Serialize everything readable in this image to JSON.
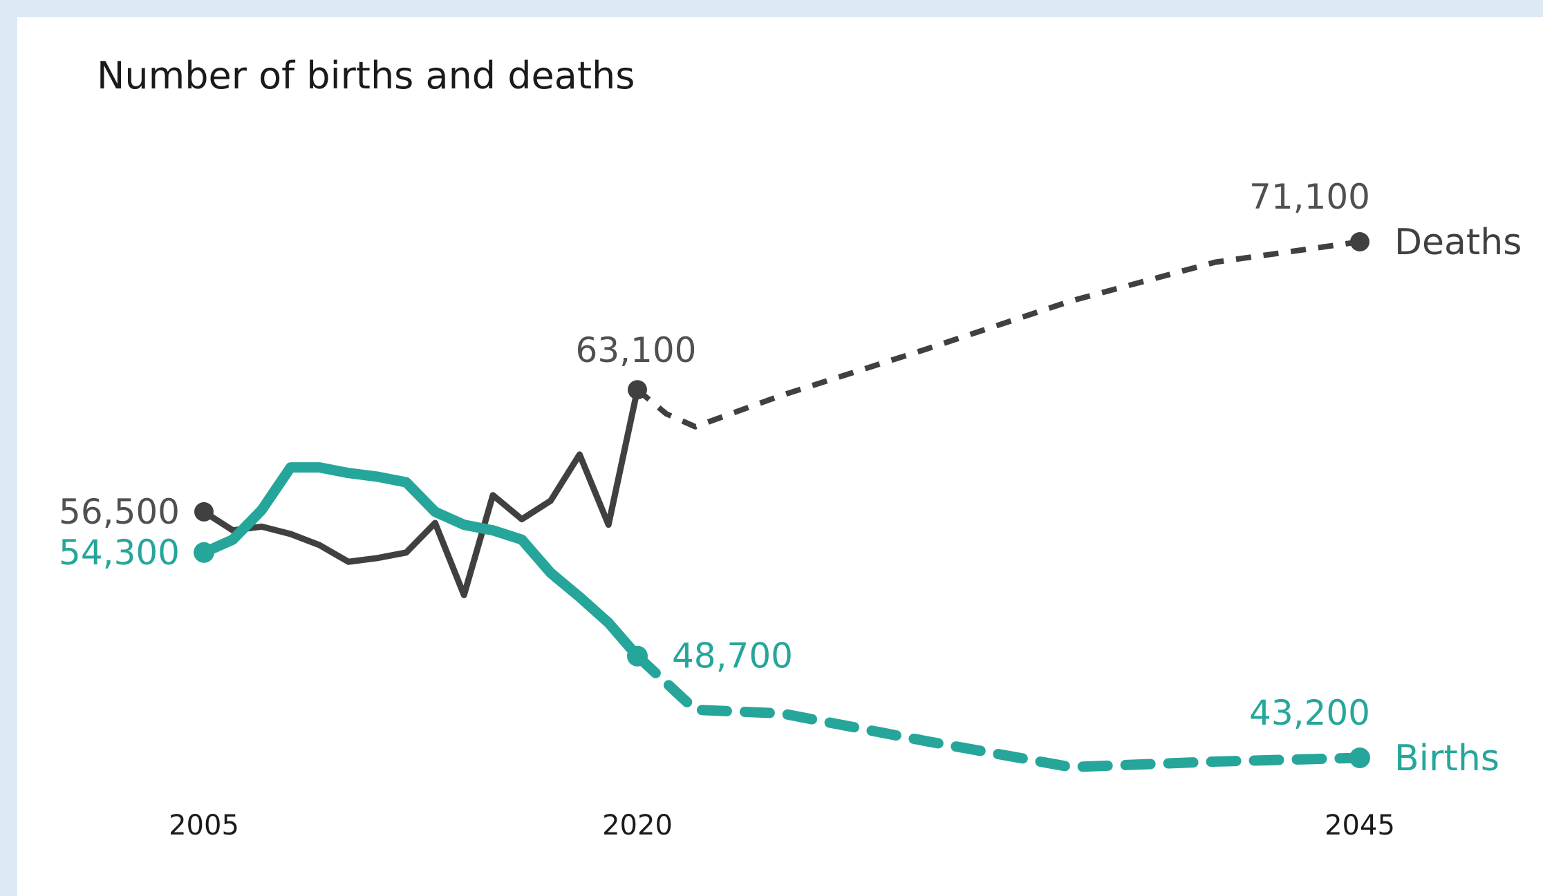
{
  "chart_data": {
    "type": "line",
    "title": "Number of births and deaths",
    "x_ticks": [
      "2005",
      "2020",
      "2045"
    ],
    "ylim": [
      40000,
      75000
    ],
    "grid": false,
    "legend": "inline-right",
    "series": [
      {
        "name": "Deaths",
        "color": "#404040",
        "actual": [
          [
            2005,
            56500
          ],
          [
            2006,
            55500
          ],
          [
            2007,
            55700
          ],
          [
            2008,
            55300
          ],
          [
            2009,
            54700
          ],
          [
            2010,
            53800
          ],
          [
            2011,
            54000
          ],
          [
            2012,
            54300
          ],
          [
            2013,
            55900
          ],
          [
            2014,
            52000
          ],
          [
            2015,
            57400
          ],
          [
            2016,
            56100
          ],
          [
            2017,
            57100
          ],
          [
            2018,
            59600
          ],
          [
            2019,
            55800
          ],
          [
            2020,
            63100
          ]
        ],
        "projected": [
          [
            2020,
            63100
          ],
          [
            2021,
            61800
          ],
          [
            2022,
            61100
          ],
          [
            2025,
            62800
          ],
          [
            2030,
            65300
          ],
          [
            2035,
            67900
          ],
          [
            2040,
            70000
          ],
          [
            2045,
            71100
          ]
        ],
        "labels": [
          {
            "x": 2005,
            "text": "56,500"
          },
          {
            "x": 2020,
            "text": "63,100"
          },
          {
            "x": 2045,
            "text": "71,100"
          }
        ]
      },
      {
        "name": "Births",
        "color": "#26a69a",
        "actual": [
          [
            2005,
            54300
          ],
          [
            2006,
            55000
          ],
          [
            2007,
            56600
          ],
          [
            2008,
            58900
          ],
          [
            2009,
            58900
          ],
          [
            2010,
            58600
          ],
          [
            2011,
            58400
          ],
          [
            2012,
            58100
          ],
          [
            2013,
            56500
          ],
          [
            2014,
            55800
          ],
          [
            2015,
            55500
          ],
          [
            2016,
            55000
          ],
          [
            2017,
            53200
          ],
          [
            2018,
            51900
          ],
          [
            2019,
            50500
          ],
          [
            2020,
            48700
          ]
        ],
        "projected": [
          [
            2020,
            48700
          ],
          [
            2022,
            45800
          ],
          [
            2025,
            45600
          ],
          [
            2030,
            44100
          ],
          [
            2035,
            42700
          ],
          [
            2040,
            43000
          ],
          [
            2045,
            43200
          ]
        ],
        "labels": [
          {
            "x": 2005,
            "text": "54,300"
          },
          {
            "x": 2020,
            "text": "48,700"
          },
          {
            "x": 2045,
            "text": "43,200"
          }
        ]
      }
    ]
  }
}
